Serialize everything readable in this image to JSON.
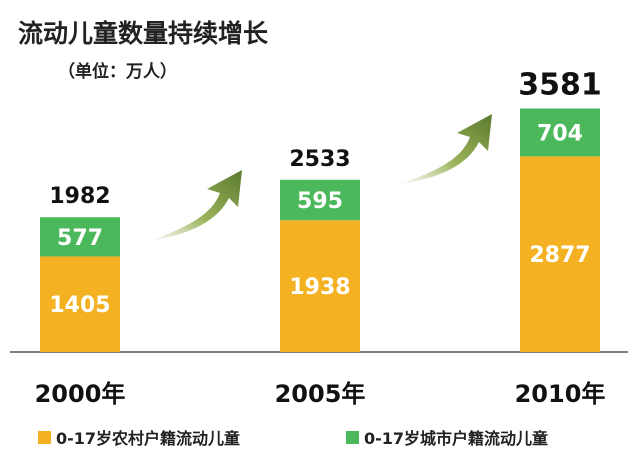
{
  "chart_data": {
    "type": "bar",
    "stacked": true,
    "title": "流动儿童数量持续增长",
    "subtitle": "（单位：万人）",
    "categories": [
      "2000年",
      "2005年",
      "2010年"
    ],
    "series": [
      {
        "name": "0-17岁农村户籍流动儿童",
        "color": "#f4b223",
        "values": [
          1405,
          1938,
          2877
        ]
      },
      {
        "name": "0-17岁城市户籍流动儿童",
        "color": "#4cb85c",
        "values": [
          577,
          595,
          704
        ]
      }
    ],
    "totals": [
      1982,
      2533,
      3581
    ],
    "legend_position": "bottom",
    "grid": false
  },
  "colors": {
    "arrow": "#6e8b3d",
    "axis": "#555555"
  }
}
